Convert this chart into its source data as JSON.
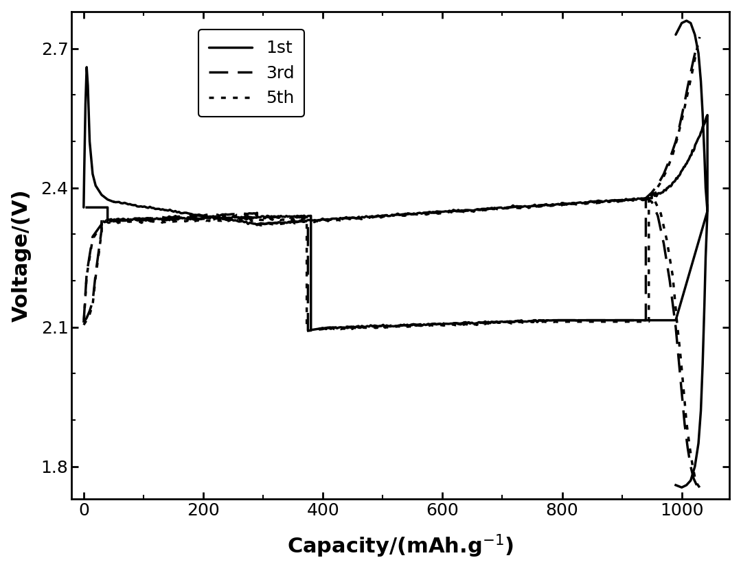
{
  "title": "",
  "xlabel": "Capacity/(mAh.g⁻¹)",
  "ylabel": "Voltage/(V)",
  "xlim": [
    -20,
    1080
  ],
  "ylim": [
    1.73,
    2.78
  ],
  "xticks": [
    0,
    200,
    400,
    600,
    800,
    1000
  ],
  "yticks": [
    1.8,
    2.1,
    2.4,
    2.7
  ],
  "legend_labels": [
    "1st",
    "3rd",
    "5th"
  ],
  "line_styles": [
    "solid",
    "dashed",
    "dotted"
  ],
  "linewidth": 2.5,
  "background_color": "#ffffff",
  "tick_color": "#000000",
  "line_color": "#000000"
}
